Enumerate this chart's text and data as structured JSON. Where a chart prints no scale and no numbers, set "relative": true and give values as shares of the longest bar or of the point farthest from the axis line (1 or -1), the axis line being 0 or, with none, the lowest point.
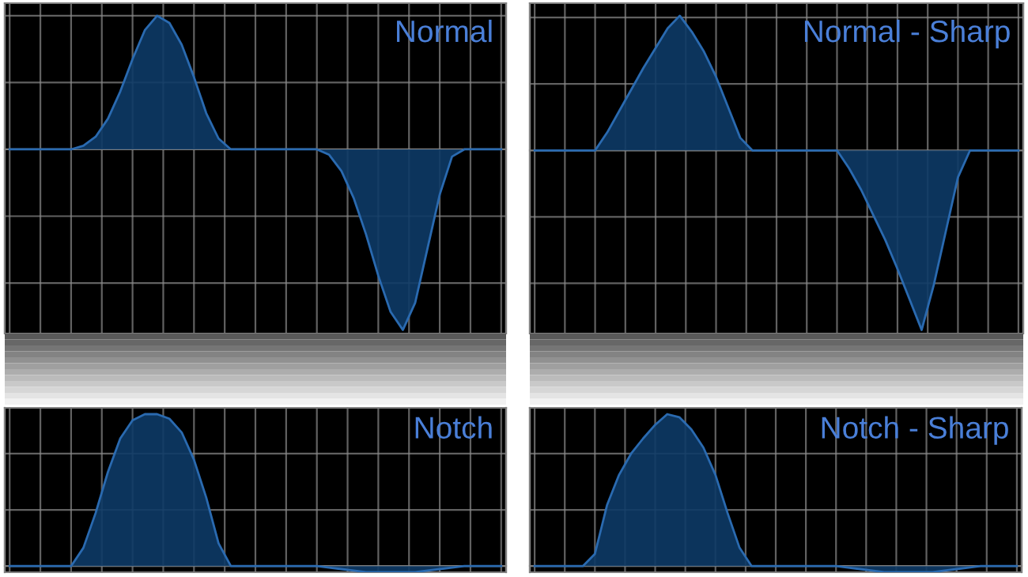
{
  "chart_data": [
    {
      "type": "area",
      "title": "Normal",
      "relative": true,
      "grid": true,
      "tick_labels": false,
      "categories": [
        null,
        null,
        null,
        null,
        null,
        null,
        null,
        null,
        null,
        null,
        null,
        null,
        null,
        null,
        null,
        null,
        null,
        null,
        null,
        null,
        null,
        null,
        null,
        null,
        null,
        null,
        null,
        null,
        null,
        null,
        null,
        null,
        null,
        null,
        null,
        null,
        null,
        null,
        null,
        null,
        null
      ],
      "series": [
        {
          "color": "#0d3a66",
          "values": [
            0,
            0,
            0,
            0,
            0,
            0,
            0.02,
            0.07,
            0.17,
            0.32,
            0.5,
            0.66,
            0.74,
            0.7,
            0.58,
            0.4,
            0.2,
            0.06,
            0,
            0,
            0,
            0,
            0,
            0,
            0,
            0,
            -0.03,
            -0.12,
            -0.27,
            -0.47,
            -0.7,
            -0.9,
            -1,
            -0.85,
            -0.55,
            -0.25,
            -0.04,
            0,
            0,
            0,
            0
          ]
        }
      ]
    },
    {
      "type": "area",
      "title": "Normal - Sharp",
      "relative": true,
      "grid": true,
      "tick_labels": false,
      "categories": [
        null,
        null,
        null,
        null,
        null,
        null,
        null,
        null,
        null,
        null,
        null,
        null,
        null,
        null,
        null,
        null,
        null,
        null,
        null,
        null,
        null,
        null,
        null,
        null,
        null,
        null,
        null,
        null,
        null,
        null,
        null,
        null,
        null,
        null,
        null,
        null,
        null,
        null,
        null,
        null,
        null
      ],
      "series": [
        {
          "color": "#0d3a66",
          "values": [
            0,
            0,
            0,
            0,
            0,
            0,
            0.1,
            0.22,
            0.34,
            0.46,
            0.57,
            0.68,
            0.75,
            0.66,
            0.55,
            0.41,
            0.24,
            0.07,
            0,
            0,
            0,
            0,
            0,
            0,
            0,
            0,
            -0.1,
            -0.22,
            -0.36,
            -0.5,
            -0.66,
            -0.83,
            -1,
            -0.75,
            -0.45,
            -0.15,
            0,
            0,
            0,
            0,
            0
          ]
        }
      ]
    },
    {
      "type": "area",
      "title": "Notch",
      "relative": true,
      "grid": true,
      "tick_labels": false,
      "categories": [
        null,
        null,
        null,
        null,
        null,
        null,
        null,
        null,
        null,
        null,
        null,
        null,
        null,
        null,
        null,
        null,
        null,
        null,
        null,
        null,
        null,
        null,
        null,
        null,
        null,
        null,
        null,
        null,
        null,
        null,
        null,
        null,
        null,
        null,
        null,
        null,
        null,
        null,
        null,
        null,
        null
      ],
      "series": [
        {
          "color": "#0d3a66",
          "values": [
            0,
            0,
            0,
            0,
            0,
            0,
            0.12,
            0.35,
            0.62,
            0.84,
            0.96,
            1,
            1,
            0.97,
            0.88,
            0.7,
            0.45,
            0.15,
            0,
            0,
            0,
            0,
            0,
            0,
            0,
            0,
            -0.01,
            -0.02,
            -0.03,
            -0.04,
            -0.04,
            -0.04,
            -0.04,
            -0.04,
            -0.03,
            -0.02,
            -0.01,
            0,
            0,
            0,
            0
          ]
        }
      ]
    },
    {
      "type": "area",
      "title": "Notch - Sharp",
      "relative": true,
      "grid": true,
      "tick_labels": false,
      "categories": [
        null,
        null,
        null,
        null,
        null,
        null,
        null,
        null,
        null,
        null,
        null,
        null,
        null,
        null,
        null,
        null,
        null,
        null,
        null,
        null,
        null,
        null,
        null,
        null,
        null,
        null,
        null,
        null,
        null,
        null,
        null,
        null,
        null,
        null,
        null,
        null,
        null,
        null,
        null,
        null,
        null
      ],
      "series": [
        {
          "color": "#0d3a66",
          "values": [
            0,
            0,
            0,
            0,
            0,
            0.08,
            0.4,
            0.6,
            0.74,
            0.84,
            0.93,
            1,
            0.98,
            0.9,
            0.78,
            0.6,
            0.35,
            0.12,
            0,
            0,
            0,
            0,
            0,
            0,
            0,
            0,
            -0.01,
            -0.02,
            -0.03,
            -0.04,
            -0.04,
            -0.04,
            -0.04,
            -0.04,
            -0.03,
            -0.02,
            -0.01,
            0,
            0,
            0,
            0
          ]
        }
      ]
    }
  ]
}
